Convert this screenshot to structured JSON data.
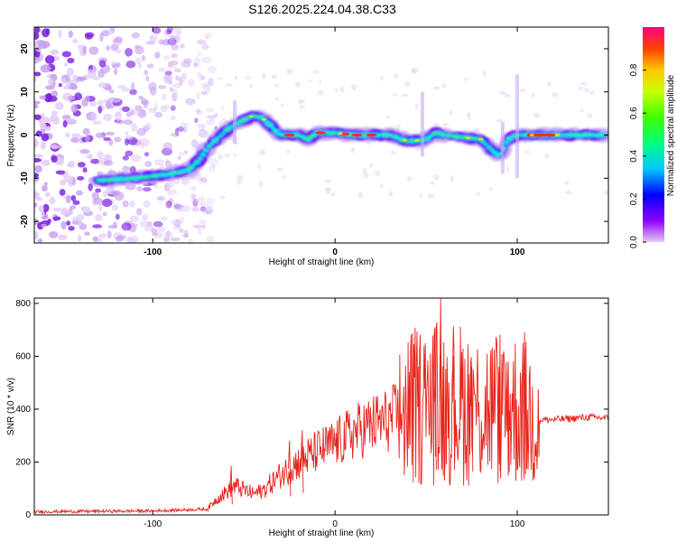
{
  "figure_title": "S126.2025.224.04.38.C33",
  "chart_data": [
    {
      "type": "heatmap",
      "xlabel": "Height of straight line (km)",
      "ylabel": "Frequency (Hz)",
      "xlim": [
        -165,
        150
      ],
      "ylim": [
        -25,
        25
      ],
      "x_ticks": [
        -100,
        0,
        100
      ],
      "y_ticks": [
        -20,
        -10,
        0,
        10,
        20
      ],
      "colorbar": {
        "label": "Normalized spectral amplitude",
        "range": [
          0,
          1
        ],
        "ticks": [
          0.0,
          0.2,
          0.4,
          0.6,
          0.8
        ]
      },
      "ridge": {
        "x": [
          -130,
          -110,
          -100,
          -90,
          -80,
          -75,
          -70,
          -65,
          -60,
          -55,
          -50,
          -45,
          -40,
          -35,
          -30,
          -25,
          -20,
          -15,
          -10,
          -5,
          0,
          10,
          20,
          30,
          40,
          50,
          55,
          60,
          70,
          80,
          85,
          90,
          95,
          100,
          110,
          120,
          130,
          140,
          150
        ],
        "y": [
          -10.5,
          -10,
          -9.5,
          -9,
          -8,
          -6,
          -3,
          -1,
          1,
          2.5,
          3.5,
          4.5,
          4,
          2,
          0,
          0,
          0,
          -1,
          0.5,
          0.5,
          0.5,
          0,
          0,
          0,
          -1.5,
          -1,
          0.5,
          0,
          -0.5,
          -1,
          -3,
          -5,
          -1,
          0,
          0,
          0,
          0,
          0,
          0
        ]
      },
      "noise_region_x": [
        -165,
        -75
      ]
    },
    {
      "type": "line",
      "xlabel": "Height of straight line (km)",
      "ylabel": "SNR (10 * v/v)",
      "xlim": [
        -165,
        150
      ],
      "ylim": [
        0,
        820
      ],
      "x_ticks": [
        -100,
        0,
        100
      ],
      "y_ticks": [
        0,
        200,
        400,
        600,
        800
      ],
      "series": [
        {
          "color": "#e8231b",
          "envelope_x": [
            -165,
            -100,
            -70,
            -65,
            -55,
            -45,
            -40,
            -30,
            -20,
            -10,
            0,
            10,
            20,
            30,
            40,
            50,
            60,
            70,
            80,
            90,
            100,
            110,
            120,
            130,
            140,
            150
          ],
          "envelope_y": [
            12,
            15,
            22,
            60,
            110,
            80,
            90,
            150,
            200,
            240,
            270,
            310,
            340,
            360,
            400,
            420,
            430,
            420,
            400,
            410,
            400,
            360,
            360,
            365,
            370,
            365
          ],
          "peaks": [
            [
              -57,
              185
            ],
            [
              -25,
              280
            ],
            [
              -18,
              320
            ],
            [
              58,
              820
            ],
            [
              55,
              500
            ],
            [
              65,
              600
            ],
            [
              75,
              560
            ],
            [
              90,
              560
            ],
            [
              95,
              580
            ],
            [
              104,
              690
            ]
          ]
        }
      ]
    }
  ],
  "colors": {
    "line": "#e8231b",
    "background": "#ffffff",
    "axis": "#000000"
  }
}
